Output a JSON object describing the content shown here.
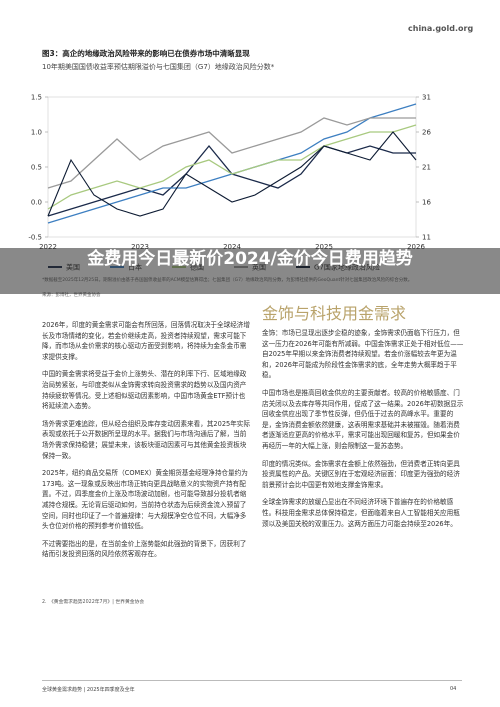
{
  "header": {
    "logo": "china.gold.org"
  },
  "figure": {
    "title": "图3：高企的地缘政治风险带来的影响已在债券市场中清晰显现",
    "subtitle": "10年期美国国债收益率预估期限溢价与七国集团（G7）地缘政治风险分数*",
    "note": "*数据截至2025年12月25日。期限溢价由基于各国国债收益率的ACM模型估算得出；七国集团（G7）地缘政治风险分数，为彭博社提供的GeoQuant针对七国集团政治风险的综合分数。",
    "source": "来源：彭博社，世界黄金协会"
  },
  "chart_data": {
    "type": "line",
    "categories": [
      "2022",
      null,
      null,
      null,
      "2023",
      null,
      null,
      null,
      "2024",
      null,
      null,
      null,
      "2025",
      null,
      null,
      null,
      "2026"
    ],
    "series": [
      {
        "name": "美国",
        "color": "#1b2a4a",
        "values": [
          -0.2,
          -0.1,
          0.0,
          0.1,
          0.2,
          0.1,
          0.4,
          0.8,
          0.4,
          0.3,
          0.2,
          0.4,
          0.8,
          0.7,
          0.8,
          0.7,
          0.7
        ]
      },
      {
        "name": "日本",
        "color": "#3d7fc1",
        "values": [
          -0.3,
          -0.2,
          -0.1,
          0.0,
          0.1,
          0.2,
          0.2,
          0.3,
          0.4,
          0.5,
          0.6,
          0.7,
          0.9,
          1.0,
          1.2,
          1.3,
          1.4
        ]
      },
      {
        "name": "德国",
        "color": "#a8c97f",
        "values": [
          -0.1,
          0.1,
          0.2,
          0.3,
          0.2,
          0.3,
          0.5,
          0.6,
          0.4,
          0.5,
          0.6,
          0.6,
          0.8,
          0.9,
          1.0,
          1.0,
          1.1
        ]
      },
      {
        "name": "英国",
        "color": "#9a9a9a",
        "values": [
          0.2,
          0.3,
          0.6,
          0.9,
          0.6,
          0.8,
          0.9,
          1.0,
          0.7,
          0.8,
          0.9,
          1.0,
          1.2,
          1.1,
          1.2,
          1.2,
          1.2
        ]
      },
      {
        "name": "G7国家地缘政治风险",
        "color": "#0d1b33",
        "axis": "y2",
        "values": [
          14,
          22,
          17,
          15,
          14,
          15,
          20,
          18,
          16,
          17,
          19,
          21,
          24,
          23,
          22,
          26,
          22
        ]
      }
    ],
    "ylim": [
      -0.5,
      1.5
    ],
    "yticks": [
      -0.5,
      {
        "value": 0,
        "label": "0.0"
      },
      0.5,
      {
        "value": 1,
        "label": "1.0"
      },
      1.5
    ],
    "y2lim": [
      11,
      31
    ],
    "y2ticks": [
      11,
      16,
      21,
      26,
      31
    ]
  },
  "overlay": {
    "title": "金费用今日最新价2024/金价今日费用趋势"
  },
  "left_column": {
    "paragraphs": [
      "2026年，印度的黄金需求可能会有所回落，回落情况取决于全球经济增长及市场情绪的变化，若金价继续走高，投资者持续观望，需求可能下降，而市场从金价需求的核心驱动方面受到影响，将持续为金条金币需求提供支撑。",
      "中国的黄金需求将受益于金价上涨势头、潜在的利率下行、区域地缘政治局势紧张，与印度类似从金饰需求转向投资需求的趋势以及国内资产持续疲软等情况。受上述相似驱动因素影响，中国市场黄金ETF预计也将延续流入态势。",
      "场外需求更难追踪，但从经合组织及库存变动因素来看，其2025年实际表现或依托于公开数据所呈现的水平。据我们与市场沟通后了解，当前场外需求保持稳健；展望未来，该板块驱动因素可与其他黄金投资板块保持一致。",
      "2025年，纽约商品交易所（COMEX）黄金期货基金经理净持仓量约为173吨。这一现象或反映出市场正转向更具战略意义的实物资产持有配置。不过，四季度金价上涨及市场波动加剧，也可能导致部分投机者缩减持仓规模。无论背后驱动如何，当前持仓状态为后续资金流入预留了空间，同时也印证了一个普遍规律：与大规模净空仓位不同，大幅净多头仓位对价格的预判参考价值较低。",
      "不过需要指出的是，在当前金价上涨势能如此强劲的背景下，因获利了结而引发投资回落的风险依然客观存在。"
    ],
    "footnote": "2.　《黄金需求趋势2022年7月》| 世界黄金协会"
  },
  "right_column": {
    "heading": "金饰与科技用金需求",
    "paragraphs": [
      "金饰：市场已显现出逐步企稳的迹象，金饰需求仍面临下行压力，但这一压力在2026年可能有所减弱。中国金饰需求正处于相对低位——自2025年早期以来金饰消费者持续观望。若金价涨幅较去年更为温和，2026年可能成为阶段性金饰需求的底，全年走势大概率趋于平稳。",
      "中国市场也是推高回收金供应的主要贡献者。较高的价格敏感度、门店关闭以及去库存等共同作用，促成了这一结果。2026年初数据显示回收金供应出现了季节性反弹，但仍低于过去的高峰水平。重要的是，金饰消费金额依然健康，这表明需求基础并未被摧毁。随着消费者逐渐适应更高的价格水平，需求可能出现回暖和复苏，但如果金价再经历一年的大幅上涨，则会限制这一复苏态势。",
      "印度的情况类似。金饰需求在金额上依然强劲，但消费者正转向更具投资属性的产品。关键区别在于宏观经济层面：印度更为强劲的经济前景预计会比中国更有效地支撑金饰需求。",
      "全球金饰需求的放缓凸显出在不同经济环境下普遍存在的价格敏感性。科技用金需求总体保持稳定，但面临着来自人工智能相关应用瓶颈以及美国关税的双重压力。这两方面压力可能会持续至2026年。"
    ]
  },
  "footer": {
    "text": "全球黄金需求趋势 | 2025年四季度及全年",
    "page": "04"
  }
}
